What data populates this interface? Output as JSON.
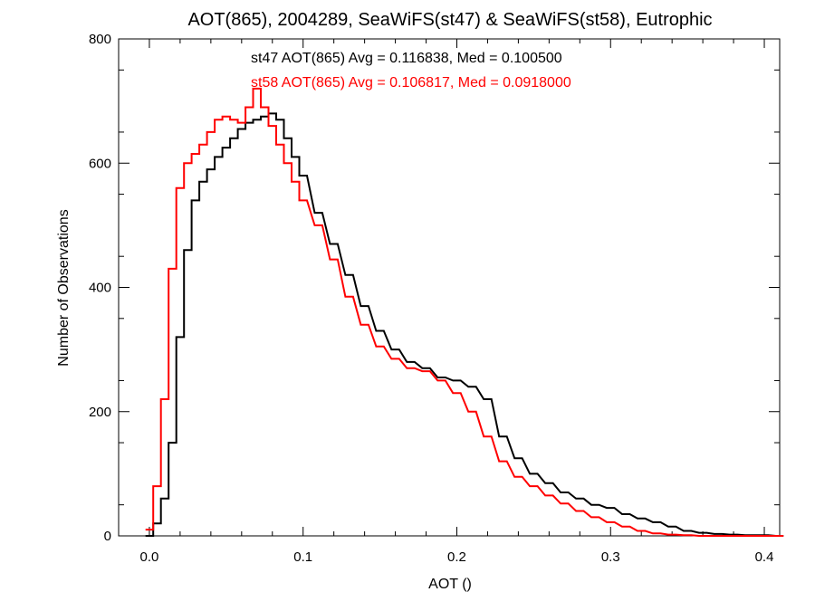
{
  "chart_data": {
    "type": "line",
    "title": "AOT(865), 2004289, SeaWiFS(st47) & SeaWiFS(st58), Eutrophic",
    "xlabel": "AOT ()",
    "ylabel": "Number of Observations",
    "xlim": [
      -0.02,
      0.41
    ],
    "ylim": [
      0,
      800
    ],
    "xticks": [
      0.0,
      0.1,
      0.2,
      0.3,
      0.4
    ],
    "xtick_labels": [
      "0.0",
      "0.1",
      "0.2",
      "0.3",
      "0.4"
    ],
    "yticks": [
      0,
      200,
      400,
      600,
      800
    ],
    "ytick_labels": [
      "0",
      "200",
      "400",
      "600",
      "800"
    ],
    "grid": false,
    "legend": "none",
    "annotations": [
      {
        "text": "st47 AOT(865) Avg = 0.116838, Med = 0.100500",
        "color": "#000000"
      },
      {
        "text": "st58 AOT(865) Avg = 0.106817, Med = 0.0918000",
        "color": "#ff0000"
      }
    ],
    "series": [
      {
        "color": "#000000",
        "x": [
          0.0,
          0.005,
          0.01,
          0.015,
          0.02,
          0.025,
          0.03,
          0.035,
          0.04,
          0.045,
          0.05,
          0.055,
          0.06,
          0.065,
          0.07,
          0.075,
          0.08,
          0.085,
          0.09,
          0.095,
          0.1,
          0.11,
          0.12,
          0.13,
          0.14,
          0.15,
          0.16,
          0.17,
          0.18,
          0.19,
          0.2,
          0.21,
          0.22,
          0.23,
          0.24,
          0.25,
          0.26,
          0.27,
          0.28,
          0.29,
          0.3,
          0.31,
          0.32,
          0.33,
          0.34,
          0.35,
          0.36,
          0.37,
          0.38,
          0.39,
          0.4,
          0.41
        ],
        "y": [
          0,
          20,
          60,
          150,
          320,
          460,
          540,
          570,
          590,
          610,
          625,
          640,
          655,
          665,
          670,
          675,
          680,
          670,
          640,
          610,
          580,
          520,
          470,
          420,
          370,
          330,
          300,
          280,
          270,
          255,
          250,
          240,
          220,
          160,
          125,
          100,
          85,
          70,
          60,
          50,
          45,
          35,
          28,
          22,
          15,
          8,
          5,
          3,
          2,
          1,
          1,
          0
        ]
      },
      {
        "color": "#ff0000",
        "x": [
          0.0,
          0.005,
          0.01,
          0.015,
          0.02,
          0.025,
          0.03,
          0.035,
          0.04,
          0.045,
          0.05,
          0.055,
          0.06,
          0.065,
          0.07,
          0.075,
          0.08,
          0.085,
          0.09,
          0.095,
          0.1,
          0.11,
          0.12,
          0.13,
          0.14,
          0.15,
          0.16,
          0.17,
          0.18,
          0.19,
          0.2,
          0.21,
          0.22,
          0.23,
          0.24,
          0.25,
          0.26,
          0.27,
          0.28,
          0.29,
          0.3,
          0.31,
          0.32,
          0.33,
          0.34,
          0.35,
          0.36,
          0.37,
          0.38,
          0.39,
          0.4,
          0.41
        ],
        "y": [
          10,
          80,
          220,
          430,
          560,
          600,
          615,
          630,
          650,
          670,
          675,
          670,
          665,
          690,
          720,
          690,
          660,
          630,
          600,
          570,
          540,
          500,
          445,
          385,
          340,
          305,
          285,
          270,
          265,
          250,
          230,
          200,
          160,
          120,
          95,
          80,
          65,
          52,
          40,
          30,
          22,
          15,
          8,
          4,
          2,
          1,
          0,
          0,
          0,
          0,
          0,
          0
        ]
      }
    ]
  }
}
